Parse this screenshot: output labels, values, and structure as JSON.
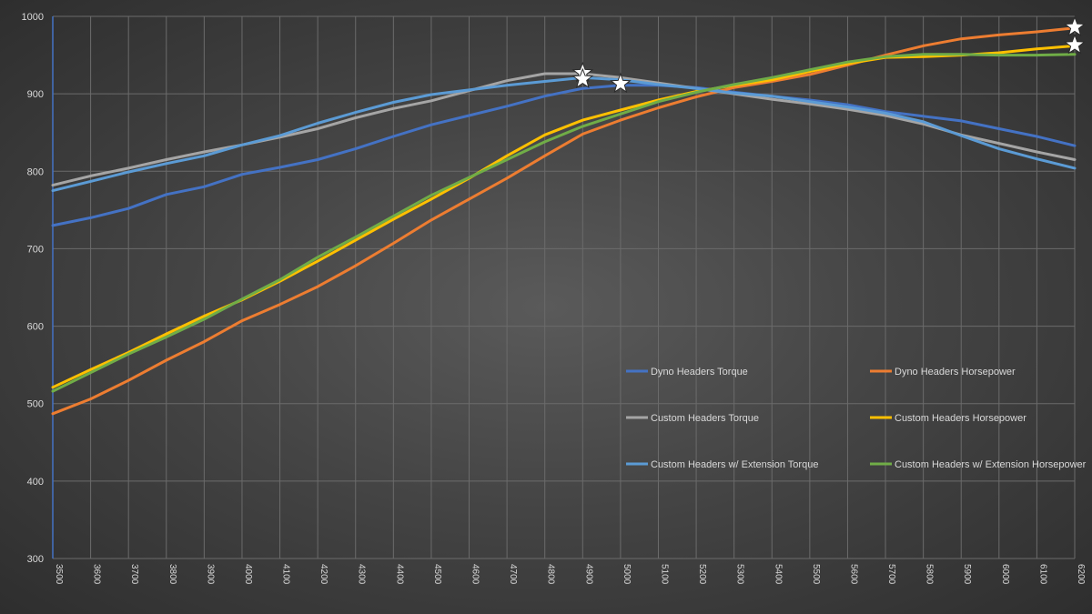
{
  "chart_data": {
    "type": "line",
    "title": "",
    "xlabel": "",
    "ylabel": "",
    "ylim": [
      300,
      1000
    ],
    "yticks": [
      "300",
      "400",
      "500",
      "600",
      "700",
      "800",
      "900",
      "1000"
    ],
    "x": [
      3500,
      3600,
      3700,
      3800,
      3900,
      4000,
      4100,
      4200,
      4300,
      4400,
      4500,
      4600,
      4700,
      4800,
      4900,
      5000,
      5100,
      5200,
      5300,
      5400,
      5500,
      5600,
      5700,
      5800,
      5900,
      6000,
      6100,
      6200
    ],
    "xticks": [
      "3500",
      "3600",
      "3700",
      "3800",
      "3900",
      "4000",
      "4100",
      "4200",
      "4300",
      "4400",
      "4500",
      "4600",
      "4700",
      "4800",
      "4900",
      "5000",
      "5100",
      "5200",
      "5300",
      "5400",
      "5500",
      "5600",
      "5700",
      "5800",
      "5900",
      "6000",
      "6100",
      "6200"
    ],
    "grid": true,
    "legend_position": "bottom-right",
    "series": [
      {
        "name": "Dyno Headers Torque",
        "color": "#4472c4",
        "values": [
          730,
          740,
          752,
          770,
          780,
          796,
          805,
          815,
          829,
          845,
          860,
          872,
          884,
          897,
          907,
          911,
          911,
          908,
          902,
          897,
          892,
          886,
          877,
          871,
          865,
          855,
          845,
          833
        ]
      },
      {
        "name": "Dyno Headers Horsepower",
        "color": "#ed7d31",
        "values": [
          487,
          506,
          530,
          556,
          580,
          607,
          628,
          651,
          678,
          707,
          737,
          764,
          791,
          820,
          848,
          866,
          882,
          896,
          908,
          916,
          925,
          937,
          950,
          962,
          971,
          976,
          980,
          985
        ]
      },
      {
        "name": "Custom Headers Torque",
        "color": "#a5a5a5",
        "values": [
          782,
          794,
          804,
          815,
          825,
          834,
          844,
          855,
          869,
          881,
          891,
          904,
          917,
          926,
          926,
          921,
          914,
          907,
          900,
          893,
          887,
          880,
          872,
          861,
          847,
          836,
          825,
          815
        ]
      },
      {
        "name": "Custom Headers Horsepower",
        "color": "#ffc000",
        "values": [
          521,
          544,
          566,
          590,
          613,
          634,
          658,
          684,
          711,
          738,
          764,
          791,
          820,
          847,
          866,
          879,
          892,
          903,
          911,
          918,
          929,
          939,
          947,
          948,
          950,
          953,
          958,
          962
        ]
      },
      {
        "name": "Custom Headers w/ Extension Torque",
        "color": "#5b9bd5",
        "values": [
          775,
          787,
          799,
          810,
          820,
          834,
          846,
          862,
          876,
          889,
          899,
          905,
          911,
          916,
          921,
          918,
          912,
          907,
          901,
          897,
          890,
          883,
          875,
          864,
          846,
          829,
          816,
          804
        ]
      },
      {
        "name": "Custom Headers w/ Extension Horsepower",
        "color": "#70ad47",
        "values": [
          516,
          540,
          564,
          586,
          609,
          635,
          660,
          689,
          715,
          742,
          769,
          792,
          815,
          838,
          858,
          874,
          890,
          902,
          912,
          921,
          931,
          941,
          948,
          951,
          951,
          950,
          950,
          951
        ]
      }
    ],
    "annotations": [
      {
        "type": "star",
        "x": 4900,
        "y": 927
      },
      {
        "type": "star",
        "x": 4900,
        "y": 919
      },
      {
        "type": "star",
        "x": 5000,
        "y": 913
      },
      {
        "type": "star",
        "x": 6200,
        "y": 986
      },
      {
        "type": "star",
        "x": 6200,
        "y": 963
      }
    ]
  }
}
